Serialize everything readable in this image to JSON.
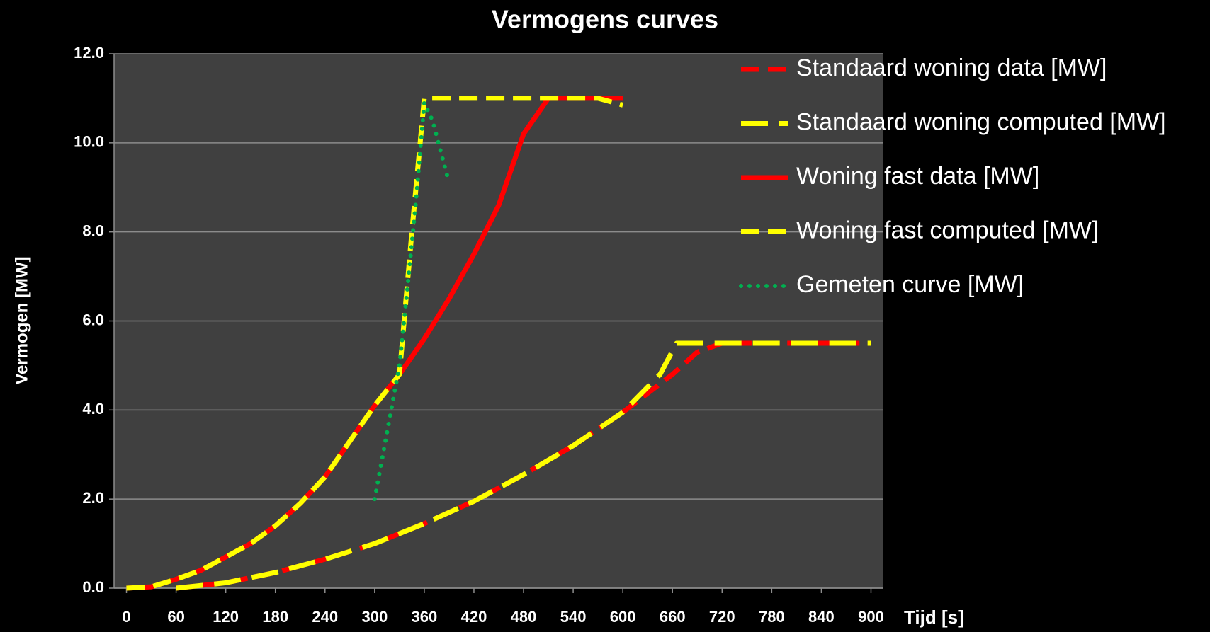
{
  "chart_data": {
    "type": "line",
    "title": "Vermogens curves",
    "ylabel": "Vermogen [MW]",
    "xlabel": "Tijd [s]",
    "xlim": [
      -15,
      915
    ],
    "xticks": [
      0,
      60,
      120,
      180,
      240,
      300,
      360,
      420,
      480,
      540,
      600,
      660,
      720,
      780,
      840,
      900
    ],
    "ylim": [
      0,
      12
    ],
    "yticks": [
      {
        "value": 0,
        "label": "0.0"
      },
      {
        "value": 2,
        "label": "2.0"
      },
      {
        "value": 4,
        "label": "4.0"
      },
      {
        "value": 6,
        "label": "6.0"
      },
      {
        "value": 8,
        "label": "8.0"
      },
      {
        "value": 10,
        "label": "10.0"
      },
      {
        "value": 12,
        "label": "12.0"
      }
    ],
    "grid": true,
    "legend": "top-right",
    "series": [
      {
        "name": "Standaard woning data [MW]",
        "color": "#ff0000",
        "dash": "dashed",
        "x": [
          60,
          120,
          180,
          240,
          300,
          360,
          420,
          480,
          540,
          600,
          660,
          690,
          720,
          780,
          840,
          900
        ],
        "values": [
          0,
          0.12,
          0.35,
          0.65,
          1.0,
          1.45,
          1.95,
          2.55,
          3.2,
          3.95,
          4.8,
          5.3,
          5.5,
          5.5,
          5.5,
          5.5
        ]
      },
      {
        "name": "Standaard woning computed [MW]",
        "color": "#ffff00",
        "dash": "longdash",
        "x": [
          60,
          120,
          180,
          240,
          300,
          360,
          420,
          480,
          540,
          600,
          645,
          665,
          720,
          780,
          840,
          900
        ],
        "values": [
          0,
          0.12,
          0.35,
          0.65,
          1.0,
          1.45,
          1.95,
          2.55,
          3.2,
          3.95,
          4.8,
          5.5,
          5.5,
          5.5,
          5.5,
          5.5
        ]
      },
      {
        "name": "Woning fast data [MW]",
        "color": "#ff0000",
        "dash": "solid",
        "x": [
          0,
          30,
          60,
          90,
          120,
          150,
          180,
          210,
          240,
          270,
          300,
          330,
          360,
          390,
          420,
          450,
          480,
          510,
          540,
          570,
          600
        ],
        "values": [
          0,
          0.03,
          0.2,
          0.4,
          0.7,
          1.0,
          1.4,
          1.9,
          2.5,
          3.3,
          4.1,
          4.8,
          5.6,
          6.5,
          7.5,
          8.6,
          10.2,
          11,
          11,
          11,
          11
        ]
      },
      {
        "name": "Woning fast computed [MW]",
        "color": "#ffff00",
        "dash": "dashed",
        "x": [
          0,
          30,
          60,
          90,
          120,
          150,
          180,
          210,
          240,
          270,
          300,
          330,
          345,
          360,
          390,
          420,
          450,
          480,
          510,
          540,
          570,
          600
        ],
        "values": [
          0,
          0.03,
          0.2,
          0.4,
          0.7,
          1.0,
          1.4,
          1.9,
          2.5,
          3.3,
          4.1,
          4.8,
          8.0,
          11,
          11,
          11,
          11,
          11,
          11,
          11,
          11,
          10.85
        ]
      },
      {
        "name": "Gemeten curve [MW]",
        "color": "#00b050",
        "dash": "dotted",
        "x": [
          300,
          310,
          320,
          330,
          340,
          350,
          360,
          370,
          380,
          390
        ],
        "values": [
          2.0,
          3.0,
          4.0,
          5.0,
          6.8,
          8.7,
          10.9,
          10.5,
          9.8,
          9.1
        ]
      }
    ]
  }
}
